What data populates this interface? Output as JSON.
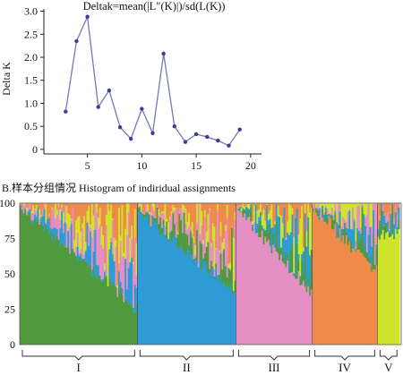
{
  "chart_data": [
    {
      "type": "line",
      "title": "Deltak=mean(|L″(K)|)/sd(L(K))",
      "ylabel": "Delta K",
      "xlabel": "",
      "xlim": [
        1,
        21
      ],
      "ylim": [
        -0.1,
        3.05
      ],
      "x_ticks": [
        5,
        10,
        15,
        20
      ],
      "y_ticks": [
        0,
        0.5,
        1.0,
        1.5,
        2.0,
        2.5,
        3.0
      ],
      "x_tick_labels": [
        "5",
        "10",
        "15",
        "20"
      ],
      "y_tick_labels": [
        "0",
        "0.5",
        "1.0",
        "1.5",
        "2.0",
        "2.5",
        "3.0"
      ],
      "grid": false,
      "series": [
        {
          "color": "#7278bb",
          "x": [
            3,
            4,
            5,
            6,
            7,
            8,
            9,
            10,
            11,
            12,
            13,
            14,
            15,
            16,
            17,
            18,
            19
          ],
          "y": [
            0.82,
            2.35,
            2.88,
            0.92,
            1.28,
            0.48,
            0.23,
            0.88,
            0.35,
            2.08,
            0.5,
            0.16,
            0.33,
            0.27,
            0.19,
            0.08,
            0.43
          ]
        }
      ]
    },
    {
      "type": "area",
      "title": "B.样本分组情况 Histogram of indiridual assignments",
      "xlabel": "",
      "ylabel": "",
      "ylim": [
        0,
        100
      ],
      "y_ticks": [
        0,
        25,
        50,
        75,
        100
      ],
      "y_tick_labels": [
        "0",
        "25",
        "50",
        "75",
        "100"
      ],
      "grid": false,
      "clusters": [
        "I",
        "II",
        "III",
        "IV",
        "V"
      ],
      "colors": {
        "green": "#4f9a3d",
        "blue": "#2e9bd6",
        "pink": "#e58fc4",
        "orange": "#f08a4b",
        "yellow": "#cfe52b",
        "teal": "#3aa7a0"
      },
      "groups": [
        {
          "label": "I",
          "dominant": "green",
          "width_share": 0.31,
          "dominant_start_pct": 97,
          "dominant_end_pct": 26
        },
        {
          "label": "II",
          "dominant": "blue",
          "width_share": 0.26,
          "dominant_start_pct": 95,
          "dominant_end_pct": 38
        },
        {
          "label": "III",
          "dominant": "pink",
          "width_share": 0.2,
          "dominant_start_pct": 97,
          "dominant_end_pct": 37
        },
        {
          "label": "IV",
          "dominant": "orange",
          "width_share": 0.17,
          "dominant_start_pct": 97,
          "dominant_end_pct": 52
        },
        {
          "label": "V",
          "dominant": "yellow",
          "width_share": 0.06,
          "dominant_start_pct": 78,
          "dominant_end_pct": 78
        }
      ]
    }
  ]
}
